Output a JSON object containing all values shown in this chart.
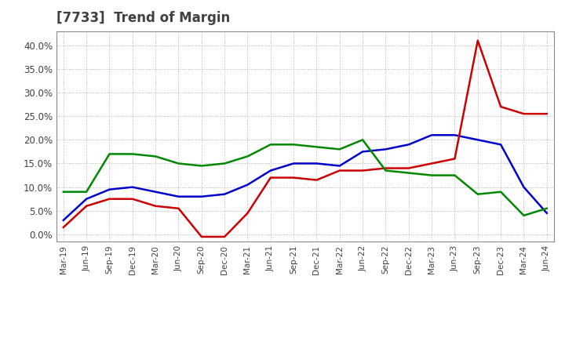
{
  "title": "[7733]  Trend of Margin",
  "x_labels": [
    "Mar-19",
    "Jun-19",
    "Sep-19",
    "Dec-19",
    "Mar-20",
    "Jun-20",
    "Sep-20",
    "Dec-20",
    "Mar-21",
    "Jun-21",
    "Sep-21",
    "Dec-21",
    "Mar-22",
    "Jun-22",
    "Sep-22",
    "Dec-22",
    "Mar-23",
    "Jun-23",
    "Sep-23",
    "Dec-23",
    "Mar-24",
    "Jun-24"
  ],
  "ordinary_income": [
    3.0,
    7.5,
    9.5,
    10.0,
    9.0,
    8.0,
    8.0,
    8.5,
    10.5,
    13.5,
    15.0,
    15.0,
    14.5,
    17.5,
    18.0,
    19.0,
    21.0,
    21.0,
    20.0,
    19.0,
    10.0,
    4.5
  ],
  "net_income": [
    1.5,
    6.0,
    7.5,
    7.5,
    6.0,
    5.5,
    -0.5,
    -0.5,
    4.5,
    12.0,
    12.0,
    11.5,
    13.5,
    13.5,
    14.0,
    14.0,
    15.0,
    16.0,
    41.0,
    27.0,
    25.5,
    25.5
  ],
  "operating_cashflow": [
    9.0,
    9.0,
    17.0,
    17.0,
    16.5,
    15.0,
    14.5,
    15.0,
    16.5,
    19.0,
    19.0,
    18.5,
    18.0,
    20.0,
    13.5,
    13.0,
    12.5,
    12.5,
    8.5,
    9.0,
    4.0,
    5.5
  ],
  "ordinary_income_color": "#0000cc",
  "net_income_color": "#cc0000",
  "operating_cashflow_color": "#008800",
  "background_color": "#ffffff",
  "grid_color": "#aaaaaa",
  "title_color": "#404040",
  "ylim": [
    -1.5,
    43
  ],
  "yticks": [
    0,
    5,
    10,
    15,
    20,
    25,
    30,
    35,
    40
  ]
}
